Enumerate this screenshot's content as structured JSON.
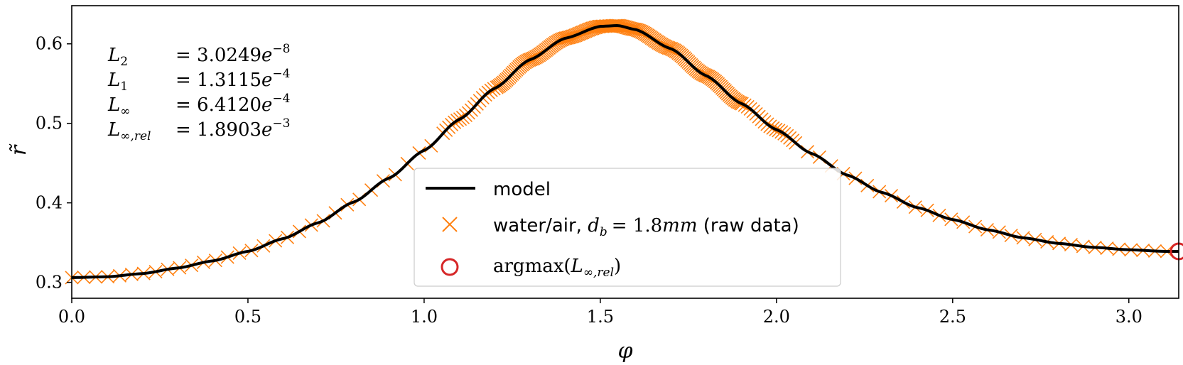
{
  "chart_data": {
    "type": "line",
    "xlabel": "φ",
    "ylabel": "r̃",
    "xlim": [
      0.0,
      3.1416
    ],
    "ylim": [
      0.28,
      0.648
    ],
    "xticks": [
      0.0,
      0.5,
      1.0,
      1.5,
      2.0,
      2.5,
      3.0
    ],
    "xtick_labels": [
      "0.0",
      "0.5",
      "1.0",
      "1.5",
      "2.0",
      "2.5",
      "3.0"
    ],
    "yticks": [
      0.3,
      0.4,
      0.5,
      0.6
    ],
    "ytick_labels": [
      "0.3",
      "0.4",
      "0.5",
      "0.6"
    ],
    "grid": false,
    "legend_position": "bottom-center",
    "model_curve": {
      "x": [
        0.0,
        0.1,
        0.2,
        0.3,
        0.4,
        0.5,
        0.6,
        0.7,
        0.8,
        0.9,
        1.0,
        1.1,
        1.2,
        1.3,
        1.4,
        1.5,
        1.55,
        1.6,
        1.7,
        1.8,
        1.9,
        2.0,
        2.1,
        2.2,
        2.3,
        2.4,
        2.5,
        2.6,
        2.7,
        2.8,
        2.9,
        3.0,
        3.1,
        3.1416
      ],
      "y": [
        0.306,
        0.307,
        0.311,
        0.318,
        0.327,
        0.339,
        0.355,
        0.375,
        0.401,
        0.431,
        0.466,
        0.505,
        0.544,
        0.58,
        0.607,
        0.622,
        0.623,
        0.618,
        0.594,
        0.56,
        0.525,
        0.492,
        0.462,
        0.435,
        0.413,
        0.394,
        0.379,
        0.366,
        0.356,
        0.349,
        0.344,
        0.341,
        0.339,
        0.339
      ]
    },
    "raw_data_region": {
      "x_start": 0.0,
      "x_end": 3.1416,
      "dense_from": 1.05,
      "dense_to": 2.05
    },
    "argmax_point": {
      "x": 3.1416,
      "y": 0.339
    },
    "annotations": [
      {
        "name": "L",
        "sub": "2",
        "sup_style": false,
        "value": "= 3.0249",
        "exp": "−8"
      },
      {
        "name": "L",
        "sub": "1",
        "value": "= 1.3115",
        "exp": "−4"
      },
      {
        "name": "L",
        "sub": "∞",
        "value": "= 6.4120",
        "exp": "−4"
      },
      {
        "name": "L",
        "sub": "∞,rel",
        "value": "= 1.8903",
        "exp": "−3"
      }
    ],
    "annotation_e": "e",
    "legend": {
      "model": "model",
      "raw_prefix": "water/air,",
      "raw_var": "d",
      "raw_var_sub": "b",
      "raw_eq": "= 1.8",
      "raw_unit": "mm",
      "raw_suffix": "(raw data)",
      "argmax_func": "argmax(",
      "argmax_var": "L",
      "argmax_sub": "∞,rel",
      "argmax_close": ")"
    },
    "colors": {
      "model": "#000000",
      "raw": "#ff7f0e",
      "argmax": "#d62728"
    }
  }
}
